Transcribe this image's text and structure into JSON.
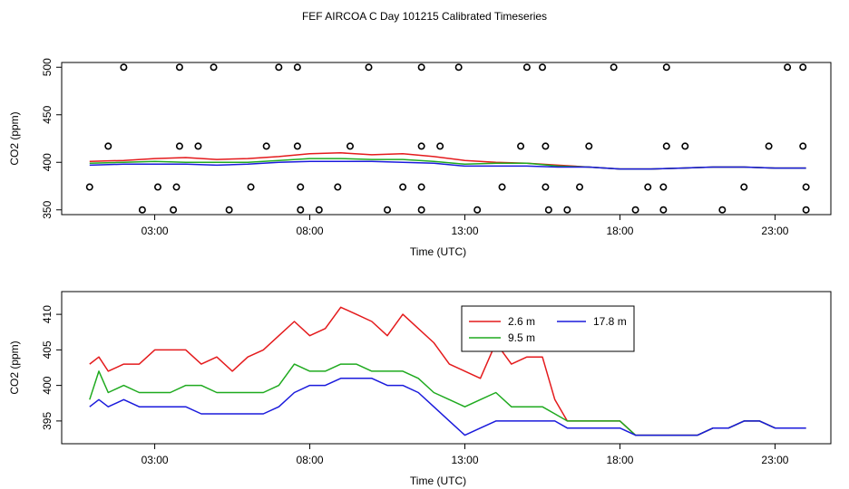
{
  "figure_title": "FEF AIRCOA C  Day 101215  Calibrated Timeseries",
  "colors": {
    "red": "#e41a1c",
    "green": "#1faa1f",
    "blue": "#1a1adc",
    "axis": "#000000"
  },
  "chart_data": [
    {
      "type": "scatter+line",
      "xlabel": "Time (UTC)",
      "ylabel": "CO2 (ppm)",
      "xlim": [
        0,
        24.8
      ],
      "ylim": [
        345,
        505
      ],
      "xticks": [
        {
          "v": 3,
          "label": "03:00"
        },
        {
          "v": 8,
          "label": "08:00"
        },
        {
          "v": 13,
          "label": "13:00"
        },
        {
          "v": 18,
          "label": "18:00"
        },
        {
          "v": 23,
          "label": "23:00"
        }
      ],
      "yticks": [
        {
          "v": 350,
          "label": "350"
        },
        {
          "v": 400,
          "label": "400"
        },
        {
          "v": 450,
          "label": "450"
        },
        {
          "v": 500,
          "label": "500"
        }
      ],
      "flag_points": [
        {
          "x": 2.0,
          "y": 500
        },
        {
          "x": 3.8,
          "y": 500
        },
        {
          "x": 4.9,
          "y": 500
        },
        {
          "x": 7.0,
          "y": 500
        },
        {
          "x": 7.6,
          "y": 500
        },
        {
          "x": 9.9,
          "y": 500
        },
        {
          "x": 11.6,
          "y": 500
        },
        {
          "x": 12.8,
          "y": 500
        },
        {
          "x": 15.0,
          "y": 500
        },
        {
          "x": 15.5,
          "y": 500
        },
        {
          "x": 17.8,
          "y": 500
        },
        {
          "x": 19.5,
          "y": 500
        },
        {
          "x": 23.4,
          "y": 500
        },
        {
          "x": 23.9,
          "y": 500
        },
        {
          "x": 1.5,
          "y": 417
        },
        {
          "x": 3.8,
          "y": 417
        },
        {
          "x": 4.4,
          "y": 417
        },
        {
          "x": 6.6,
          "y": 417
        },
        {
          "x": 7.6,
          "y": 417
        },
        {
          "x": 9.3,
          "y": 417
        },
        {
          "x": 11.6,
          "y": 417
        },
        {
          "x": 12.2,
          "y": 417
        },
        {
          "x": 14.8,
          "y": 417
        },
        {
          "x": 15.6,
          "y": 417
        },
        {
          "x": 17.0,
          "y": 417
        },
        {
          "x": 19.5,
          "y": 417
        },
        {
          "x": 20.1,
          "y": 417
        },
        {
          "x": 22.8,
          "y": 417
        },
        {
          "x": 23.9,
          "y": 417
        },
        {
          "x": 0.9,
          "y": 374
        },
        {
          "x": 3.1,
          "y": 374
        },
        {
          "x": 3.7,
          "y": 374
        },
        {
          "x": 6.1,
          "y": 374
        },
        {
          "x": 7.7,
          "y": 374
        },
        {
          "x": 8.9,
          "y": 374
        },
        {
          "x": 11.0,
          "y": 374
        },
        {
          "x": 11.6,
          "y": 374
        },
        {
          "x": 14.2,
          "y": 374
        },
        {
          "x": 15.6,
          "y": 374
        },
        {
          "x": 16.7,
          "y": 374
        },
        {
          "x": 18.9,
          "y": 374
        },
        {
          "x": 19.4,
          "y": 374
        },
        {
          "x": 22.0,
          "y": 374
        },
        {
          "x": 24.0,
          "y": 374
        },
        {
          "x": 2.6,
          "y": 350
        },
        {
          "x": 3.6,
          "y": 350
        },
        {
          "x": 5.4,
          "y": 350
        },
        {
          "x": 7.7,
          "y": 350
        },
        {
          "x": 8.3,
          "y": 350
        },
        {
          "x": 10.5,
          "y": 350
        },
        {
          "x": 11.6,
          "y": 350
        },
        {
          "x": 13.4,
          "y": 350
        },
        {
          "x": 15.7,
          "y": 350
        },
        {
          "x": 16.3,
          "y": 350
        },
        {
          "x": 18.5,
          "y": 350
        },
        {
          "x": 19.4,
          "y": 350
        },
        {
          "x": 21.3,
          "y": 350
        },
        {
          "x": 24.0,
          "y": 350
        }
      ],
      "series": [
        {
          "name": "2.6 m",
          "color": "#e41a1c",
          "x": [
            0.9,
            2,
            3,
            4,
            5,
            6,
            7,
            8,
            9,
            10,
            11,
            12,
            13,
            14,
            15,
            16,
            17,
            18,
            19,
            20,
            21,
            22,
            23,
            24
          ],
          "values": [
            401,
            402,
            404,
            405,
            403,
            404,
            406,
            409,
            410,
            408,
            409,
            406,
            402,
            400,
            399,
            397,
            395,
            393,
            393,
            394,
            395,
            395,
            394,
            394
          ]
        },
        {
          "name": "9.5 m",
          "color": "#1faa1f",
          "x": [
            0.9,
            2,
            3,
            4,
            5,
            6,
            7,
            8,
            9,
            10,
            11,
            12,
            13,
            14,
            15,
            16,
            17,
            18,
            19,
            20,
            21,
            22,
            23,
            24
          ],
          "values": [
            399,
            400,
            401,
            400,
            400,
            400,
            402,
            404,
            404,
            403,
            403,
            401,
            398,
            399,
            399,
            396,
            395,
            393,
            393,
            394,
            395,
            395,
            394,
            394
          ]
        },
        {
          "name": "17.8 m",
          "color": "#1a1adc",
          "x": [
            0.9,
            2,
            3,
            4,
            5,
            6,
            7,
            8,
            9,
            10,
            11,
            12,
            13,
            14,
            15,
            16,
            17,
            18,
            19,
            20,
            21,
            22,
            23,
            24
          ],
          "values": [
            397,
            398,
            398,
            398,
            397,
            398,
            400,
            401,
            401,
            401,
            400,
            399,
            396,
            396,
            396,
            395,
            395,
            393,
            393,
            394,
            395,
            395,
            394,
            394
          ]
        }
      ]
    },
    {
      "type": "line",
      "xlabel": "Time (UTC)",
      "ylabel": "CO2 (ppm)",
      "xlim": [
        0,
        24.8
      ],
      "ylim": [
        391.8,
        413.2
      ],
      "xticks": [
        {
          "v": 3,
          "label": "03:00"
        },
        {
          "v": 8,
          "label": "08:00"
        },
        {
          "v": 13,
          "label": "13:00"
        },
        {
          "v": 18,
          "label": "18:00"
        },
        {
          "v": 23,
          "label": "23:00"
        }
      ],
      "yticks": [
        {
          "v": 395,
          "label": "395"
        },
        {
          "v": 400,
          "label": "400"
        },
        {
          "v": 405,
          "label": "405"
        },
        {
          "v": 410,
          "label": "410"
        }
      ],
      "legend": {
        "position": "top-center",
        "entries": [
          "2.6 m",
          "9.5 m",
          "17.8 m"
        ]
      },
      "series": [
        {
          "name": "2.6 m",
          "color": "#e41a1c",
          "x": [
            0.9,
            1.2,
            1.5,
            2.0,
            2.5,
            3.0,
            3.5,
            4.0,
            4.5,
            5.0,
            5.5,
            6.0,
            6.5,
            7.0,
            7.5,
            8.0,
            8.5,
            9.0,
            9.5,
            10.0,
            10.5,
            11.0,
            11.5,
            12.0,
            12.5,
            13.0,
            13.5,
            14.0,
            14.5,
            15.0,
            15.5,
            15.9,
            16.3,
            16.7,
            17.0,
            17.5,
            18.0,
            18.5,
            19.0,
            19.5,
            20.0,
            20.5,
            21.0,
            21.5,
            22.0,
            22.5,
            23.0,
            23.5,
            24.0
          ],
          "values": [
            403,
            404,
            402,
            403,
            403,
            405,
            405,
            405,
            403,
            404,
            402,
            404,
            405,
            407,
            409,
            407,
            408,
            411,
            410,
            409,
            407,
            410,
            408,
            406,
            403,
            402,
            401,
            406,
            403,
            404,
            404,
            398,
            395,
            395,
            395,
            395,
            395,
            393,
            393,
            393,
            393,
            393,
            394,
            394,
            395,
            395,
            394,
            394,
            394
          ]
        },
        {
          "name": "9.5 m",
          "color": "#1faa1f",
          "x": [
            0.9,
            1.2,
            1.5,
            2.0,
            2.5,
            3.0,
            3.5,
            4.0,
            4.5,
            5.0,
            5.5,
            6.0,
            6.5,
            7.0,
            7.5,
            8.0,
            8.5,
            9.0,
            9.5,
            10.0,
            10.5,
            11.0,
            11.5,
            12.0,
            12.5,
            13.0,
            13.5,
            14.0,
            14.5,
            15.0,
            15.5,
            15.9,
            16.3,
            16.7,
            17.0,
            17.5,
            18.0,
            18.5,
            19.0,
            19.5,
            20.0,
            20.5,
            21.0,
            21.5,
            22.0,
            22.5,
            23.0,
            23.5,
            24.0
          ],
          "values": [
            398,
            402,
            399,
            400,
            399,
            399,
            399,
            400,
            400,
            399,
            399,
            399,
            399,
            400,
            403,
            402,
            402,
            403,
            403,
            402,
            402,
            402,
            401,
            399,
            398,
            397,
            398,
            399,
            397,
            397,
            397,
            396,
            395,
            395,
            395,
            395,
            395,
            393,
            393,
            393,
            393,
            393,
            394,
            394,
            395,
            395,
            394,
            394,
            394
          ]
        },
        {
          "name": "17.8 m",
          "color": "#1a1adc",
          "x": [
            0.9,
            1.2,
            1.5,
            2.0,
            2.5,
            3.0,
            3.5,
            4.0,
            4.5,
            5.0,
            5.5,
            6.0,
            6.5,
            7.0,
            7.5,
            8.0,
            8.5,
            9.0,
            9.5,
            10.0,
            10.5,
            11.0,
            11.5,
            12.0,
            12.5,
            13.0,
            13.5,
            14.0,
            14.5,
            15.0,
            15.5,
            15.9,
            16.3,
            16.7,
            17.0,
            17.5,
            18.0,
            18.5,
            19.0,
            19.5,
            20.0,
            20.5,
            21.0,
            21.5,
            22.0,
            22.5,
            23.0,
            23.5,
            24.0
          ],
          "values": [
            397,
            398,
            397,
            398,
            397,
            397,
            397,
            397,
            396,
            396,
            396,
            396,
            396,
            397,
            399,
            400,
            400,
            401,
            401,
            401,
            400,
            400,
            399,
            397,
            395,
            393,
            394,
            395,
            395,
            395,
            395,
            395,
            394,
            394,
            394,
            394,
            394,
            393,
            393,
            393,
            393,
            393,
            394,
            394,
            395,
            395,
            394,
            394,
            394
          ]
        }
      ]
    }
  ]
}
